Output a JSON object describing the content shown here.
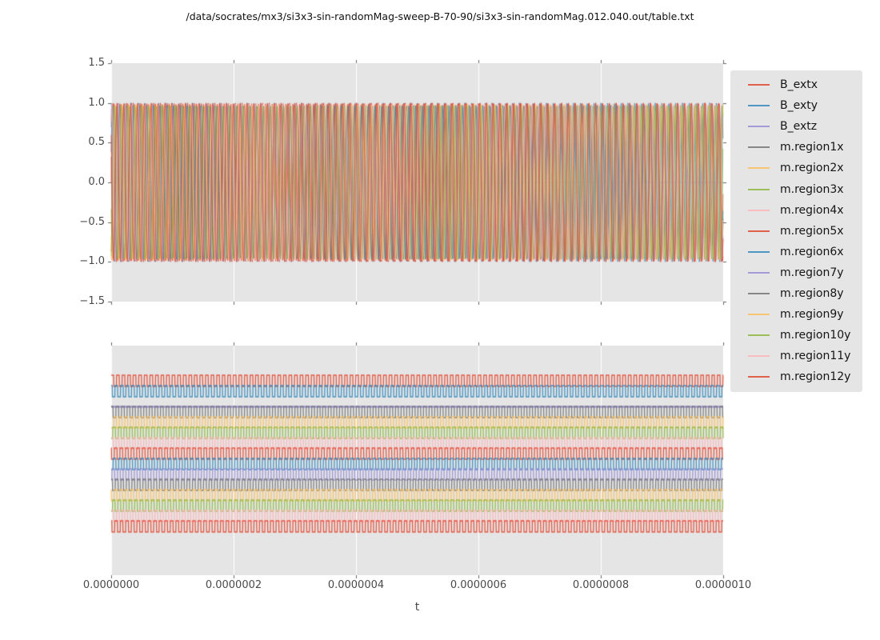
{
  "title": "/data/socrates/mx3/si3x3-sin-randomMag-sweep-B-70-90/si3x3-sin-randomMag.012.040.out/table.txt",
  "ui_colors": {
    "panel_background": "#e5e5e5",
    "grid_line": "#ffffff",
    "tick_mark": "#555555",
    "tick_label_text": "#4a4a4a",
    "title_text": "#111111",
    "legend_background": "#e5e5e5"
  },
  "chart_data": {
    "type": "line",
    "title": "/data/socrates/mx3/si3x3-sin-randomMag-sweep-B-70-90/si3x3-sin-randomMag.012.040.out/table.txt",
    "xlabel": "t",
    "xlim": [
      0,
      1e-06
    ],
    "x_tick_labels": [
      "0.0000000",
      "0.0000002",
      "0.0000004",
      "0.0000006",
      "0.0000008",
      "0.0000010"
    ],
    "grid": "vertical-only",
    "legend_position": "right",
    "panels": {
      "top": {
        "ylim": [
          -1.5,
          1.5
        ],
        "y_tick_labels": [
          "1.5",
          "1.0",
          "0.5",
          "0.0",
          "−0.5",
          "−1.0",
          "−1.5"
        ]
      },
      "bottom": {
        "y_tick_labels": []
      }
    },
    "series": [
      {
        "name": "B_extx",
        "color": "#E24A33",
        "top": {
          "waveform": "sine",
          "amplitude": 1.0,
          "cycles": 90.0,
          "phase": 0.0
        },
        "bottom": {
          "waveform": "square",
          "level": 0,
          "cycles": 110.0,
          "phase": 0.3
        }
      },
      {
        "name": "B_exty",
        "color": "#348ABD",
        "top": {
          "waveform": "sine",
          "amplitude": 1.0,
          "cycles": 90.0,
          "phase": 1.57
        },
        "bottom": {
          "waveform": "square",
          "level": 1,
          "cycles": 110.9,
          "phase": 2.0
        }
      },
      {
        "name": "B_extz",
        "color": "#988ED5",
        "top": {
          "waveform": "flat",
          "amplitude": 0.0,
          "cycles": 0.0,
          "phase": 0.0
        },
        "bottom": {
          "waveform": "flat",
          "level": 2.5,
          "cycles": 0.0,
          "phase": 0.0
        }
      },
      {
        "name": "m.region1x",
        "color": "#777777",
        "top": {
          "waveform": "sine",
          "amplitude": 0.97,
          "cycles": 89.3,
          "phase": 0.8
        },
        "bottom": {
          "waveform": "square",
          "level": 3,
          "cycles": 109.4,
          "phase": 1.1
        }
      },
      {
        "name": "m.region2x",
        "color": "#FBC15E",
        "top": {
          "waveform": "sine",
          "amplitude": 0.98,
          "cycles": 90.6,
          "phase": 2.1
        },
        "bottom": {
          "waveform": "square",
          "level": 4,
          "cycles": 110.5,
          "phase": 3.3
        }
      },
      {
        "name": "m.region3x",
        "color": "#8EBA42",
        "top": {
          "waveform": "sine",
          "amplitude": 0.96,
          "cycles": 89.8,
          "phase": 3.5
        },
        "bottom": {
          "waveform": "square",
          "level": 5,
          "cycles": 109.8,
          "phase": 4.6
        }
      },
      {
        "name": "m.region4x",
        "color": "#FFB5B8",
        "top": {
          "waveform": "sine",
          "amplitude": 0.98,
          "cycles": 91.2,
          "phase": 4.4
        },
        "bottom": {
          "waveform": "square",
          "level": 6,
          "cycles": 111.2,
          "phase": 0.7
        }
      },
      {
        "name": "m.region5x",
        "color": "#E24A33",
        "top": {
          "waveform": "sine",
          "amplitude": 0.99,
          "cycles": 89.0,
          "phase": 5.2
        },
        "bottom": {
          "waveform": "square",
          "level": 7,
          "cycles": 109.2,
          "phase": 2.9
        }
      },
      {
        "name": "m.region6x",
        "color": "#348ABD",
        "top": {
          "waveform": "sine",
          "amplitude": 0.97,
          "cycles": 90.9,
          "phase": 0.4
        },
        "bottom": {
          "waveform": "square",
          "level": 8,
          "cycles": 110.7,
          "phase": 4.1
        }
      },
      {
        "name": "m.region7y",
        "color": "#988ED5",
        "top": {
          "waveform": "sine",
          "amplitude": 0.98,
          "cycles": 89.6,
          "phase": 1.9
        },
        "bottom": {
          "waveform": "square",
          "level": 9,
          "cycles": 109.6,
          "phase": 5.5
        }
      },
      {
        "name": "m.region8y",
        "color": "#777777",
        "top": {
          "waveform": "sine",
          "amplitude": 0.96,
          "cycles": 91.5,
          "phase": 2.8
        },
        "bottom": {
          "waveform": "square",
          "level": 10,
          "cycles": 111.0,
          "phase": 1.6
        }
      },
      {
        "name": "m.region9y",
        "color": "#FBC15E",
        "top": {
          "waveform": "sine",
          "amplitude": 0.98,
          "cycles": 88.7,
          "phase": 3.9
        },
        "bottom": {
          "waveform": "square",
          "level": 11,
          "cycles": 109.0,
          "phase": 3.0
        }
      },
      {
        "name": "m.region10y",
        "color": "#8EBA42",
        "top": {
          "waveform": "sine",
          "amplitude": 0.97,
          "cycles": 90.3,
          "phase": 5.0
        },
        "bottom": {
          "waveform": "square",
          "level": 12,
          "cycles": 110.3,
          "phase": 4.9
        }
      },
      {
        "name": "m.region11y",
        "color": "#FFB5B8",
        "top": {
          "waveform": "sine",
          "amplitude": 0.98,
          "cycles": 91.8,
          "phase": 0.9
        },
        "bottom": {
          "waveform": "square",
          "level": 13,
          "cycles": 111.4,
          "phase": 0.2
        }
      },
      {
        "name": "m.region12y",
        "color": "#E24A33",
        "top": {
          "waveform": "sine",
          "amplitude": 1.0,
          "cycles": 89.5,
          "phase": 2.5
        },
        "bottom": {
          "waveform": "square",
          "level": 14,
          "cycles": 109.9,
          "phase": 2.4
        }
      }
    ]
  }
}
